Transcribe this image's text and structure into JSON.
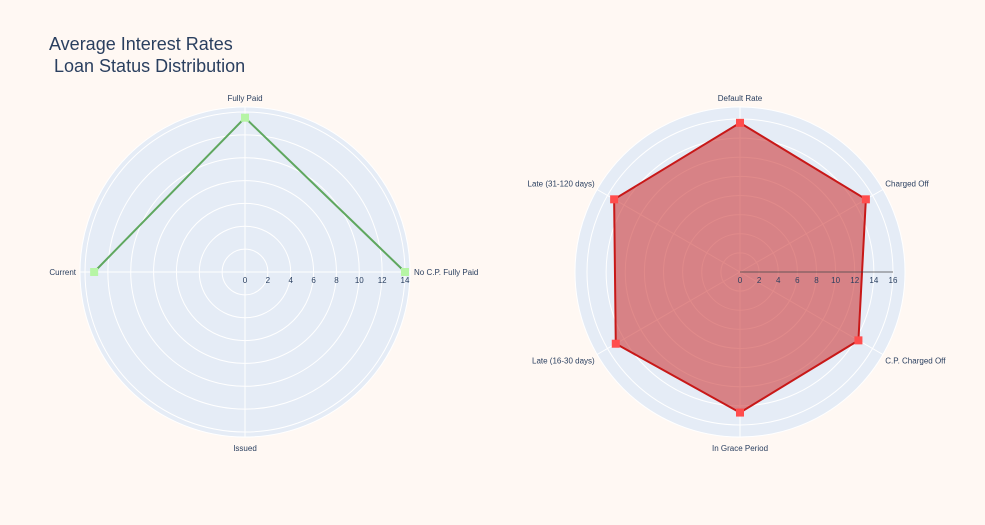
{
  "title": "Average Interest Rates\n Loan Status Distribution",
  "colors": {
    "background": "#fff8f3",
    "polar_bg": "#e5ecf6",
    "grid": "#ffffff",
    "text": "#2a3f5f",
    "left_line": "#5fa75f",
    "left_marker": "#b6f5a5",
    "right_line": "#c81818",
    "right_marker": "#ff4d4d",
    "right_fill": "rgba(205,60,60,0.6)"
  },
  "chart_data": [
    {
      "type": "radar",
      "radial_range": [
        0,
        14
      ],
      "radial_ticks": [
        0,
        2,
        4,
        6,
        8,
        10,
        12,
        14
      ],
      "categories": [
        "No C.P. Fully Paid",
        "Fully Paid",
        "Current",
        "Issued"
      ],
      "series": [
        {
          "values": [
            14,
            13.5,
            13.2,
            null
          ],
          "closed": false,
          "fill": false
        }
      ]
    },
    {
      "type": "radar",
      "radial_range": [
        0,
        16
      ],
      "radial_ticks": [
        0,
        2,
        4,
        6,
        8,
        10,
        12,
        14,
        16
      ],
      "categories": [
        "Default Rate",
        "Charged Off",
        "C.P. Charged Off",
        "In Grace Period",
        "Late (16-30 days)",
        "Late (31-120 days)"
      ],
      "series": [
        {
          "values": [
            15.6,
            15.2,
            14.3,
            14.7,
            15.0,
            15.2
          ],
          "closed": true,
          "fill": true
        }
      ]
    }
  ]
}
